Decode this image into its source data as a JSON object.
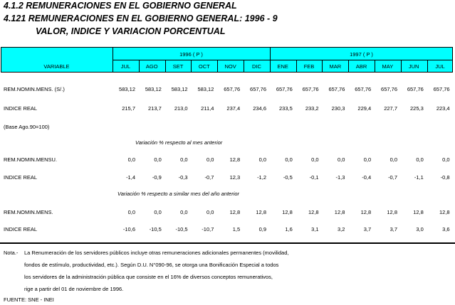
{
  "titles": [
    "4.1.2  REMUNERACIONES EN EL GOBIERNO GENERAL",
    "4.121  REMUNERACIONES EN EL GOBIERNO GENERAL:  1996 - 9",
    "VALOR, INDICE Y VARIACION PORCENTUAL"
  ],
  "header": {
    "variable": "VARIABLE",
    "year1": "1996 ( P )",
    "year2": "1997 ( P )",
    "months": [
      "JUL",
      "AGO",
      "SET",
      "OCT",
      "NOV",
      "DIC",
      "ENE",
      "FEB",
      "MAR",
      "ABR",
      "MAY",
      "JUN",
      "JUL"
    ]
  },
  "rows": [
    {
      "label": "REM.NOMIN.MENS. (S/.)",
      "values": [
        "583,12",
        "583,12",
        "583,12",
        "583,12",
        "657,76",
        "657,76",
        "657,76",
        "657,76",
        "657,76",
        "657,76",
        "657,76",
        "657,76",
        "657,76"
      ]
    },
    {
      "label": "INDICE REAL",
      "values": [
        "215,7",
        "213,7",
        "213,0",
        "211,4",
        "237,4",
        "234,6",
        "233,5",
        "233,2",
        "230,3",
        "229,4",
        "227,7",
        "225,3",
        "223,4"
      ]
    },
    {
      "label": "REM.NOMIN.MENSU.",
      "values": [
        "0,0",
        "0,0",
        "0,0",
        "0,0",
        "12,8",
        "0,0",
        "0,0",
        "0,0",
        "0,0",
        "0,0",
        "0,0",
        "0,0",
        "0,0"
      ]
    },
    {
      "label": "INDICE REAL",
      "values": [
        "-1,4",
        "-0,9",
        "-0,3",
        "-0,7",
        "12,3",
        "-1,2",
        "-0,5",
        "-0,1",
        "-1,3",
        "-0,4",
        "-0,7",
        "-1,1",
        "-0,8"
      ]
    },
    {
      "label": "REM.NOMIN.MENS.",
      "values": [
        "0,0",
        "0,0",
        "0,0",
        "0,0",
        "12,8",
        "12,8",
        "12,8",
        "12,8",
        "12,8",
        "12,8",
        "12,8",
        "12,8",
        "12,8"
      ]
    },
    {
      "label": "INDICE REAL",
      "values": [
        "-10,6",
        "-10,5",
        "-10,5",
        "-10,7",
        "1,5",
        "0,9",
        "1,6",
        "3,1",
        "3,2",
        "3,7",
        "3,7",
        "3,0",
        "3,6"
      ]
    }
  ],
  "base": "(Base Ago.90=100)",
  "captions": [
    "Variación % respecto al mes anterior",
    "Variación % respecto a similar mes del año anterior"
  ],
  "notes": {
    "prefix": "Nota.-",
    "lines": [
      "La Renumeración de los servidores públicos incluye otras remuneraciones adicionales permanentes (movilidad,",
      "fondos de estímulo, productividad, etc.).  Según D.U. N°090-96, se otorga una Bonificación Especial a todos",
      "los servidores de la administración pública que consiste en el 16% de diversos conceptos remunerativos,",
      "rige a partir del 01 de noviembre de 1996."
    ],
    "source": "FUENTE:  SNE - INEI"
  }
}
